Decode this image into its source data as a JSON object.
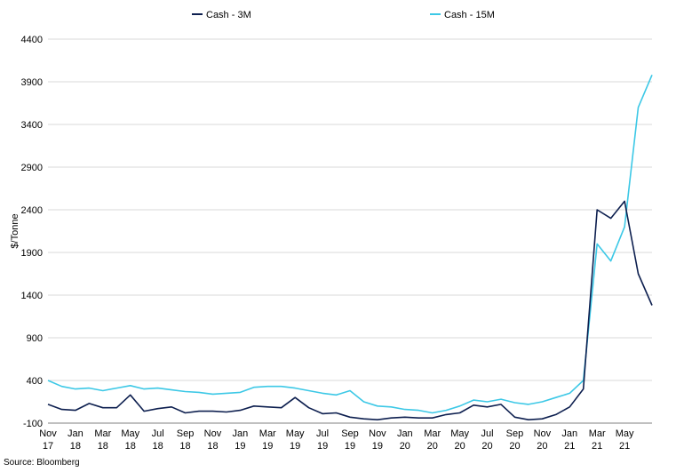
{
  "chart_data": {
    "type": "line",
    "ylabel": "$/Tonne",
    "ylim": [
      -100,
      4400
    ],
    "yticks": [
      -100,
      400,
      900,
      1400,
      1900,
      2400,
      2900,
      3400,
      3900,
      4400
    ],
    "grid": "horizontal",
    "legend_position": "top",
    "x_tick_labels": [
      [
        "Nov",
        "17"
      ],
      [
        "Jan",
        "18"
      ],
      [
        "Mar",
        "18"
      ],
      [
        "May",
        "18"
      ],
      [
        "Jul",
        "18"
      ],
      [
        "Sep",
        "18"
      ],
      [
        "Nov",
        "18"
      ],
      [
        "Jan",
        "19"
      ],
      [
        "Mar",
        "19"
      ],
      [
        "May",
        "19"
      ],
      [
        "Jul",
        "19"
      ],
      [
        "Sep",
        "19"
      ],
      [
        "Nov",
        "19"
      ],
      [
        "Jan",
        "20"
      ],
      [
        "Mar",
        "20"
      ],
      [
        "May",
        "20"
      ],
      [
        "Jul",
        "20"
      ],
      [
        "Sep",
        "20"
      ],
      [
        "Nov",
        "20"
      ],
      [
        "Jan",
        "21"
      ],
      [
        "Mar",
        "21"
      ],
      [
        "May",
        "21"
      ]
    ],
    "x_dates": [
      "2017-11",
      "2017-12",
      "2018-01",
      "2018-02",
      "2018-03",
      "2018-04",
      "2018-05",
      "2018-06",
      "2018-07",
      "2018-08",
      "2018-09",
      "2018-10",
      "2018-11",
      "2018-12",
      "2019-01",
      "2019-02",
      "2019-03",
      "2019-04",
      "2019-05",
      "2019-06",
      "2019-07",
      "2019-08",
      "2019-09",
      "2019-10",
      "2019-11",
      "2019-12",
      "2020-01",
      "2020-02",
      "2020-03",
      "2020-04",
      "2020-05",
      "2020-06",
      "2020-07",
      "2020-08",
      "2020-09",
      "2020-10",
      "2020-11",
      "2020-12",
      "2021-01",
      "2021-02",
      "2021-03",
      "2021-04",
      "2021-05",
      "2021-06",
      "2021-07"
    ],
    "series": [
      {
        "name": "Cash - 3M",
        "color": "#0d1f4f",
        "values": [
          120,
          60,
          50,
          130,
          80,
          80,
          230,
          40,
          70,
          90,
          20,
          40,
          40,
          30,
          50,
          100,
          90,
          80,
          200,
          80,
          10,
          20,
          -30,
          -50,
          -60,
          -40,
          -30,
          -40,
          -40,
          0,
          20,
          110,
          90,
          120,
          -30,
          -60,
          -50,
          0,
          90,
          300,
          2400,
          2300,
          2500,
          1650,
          1280
        ]
      },
      {
        "name": "Cash - 15M",
        "color": "#3cc8e6",
        "values": [
          400,
          330,
          300,
          310,
          280,
          310,
          340,
          300,
          310,
          290,
          270,
          260,
          240,
          250,
          260,
          320,
          330,
          330,
          310,
          280,
          250,
          230,
          280,
          150,
          100,
          90,
          60,
          50,
          20,
          50,
          100,
          170,
          150,
          180,
          140,
          120,
          150,
          200,
          250,
          400,
          2000,
          1800,
          2200,
          3600,
          3980
        ]
      }
    ]
  },
  "source": "Source: Bloomberg"
}
